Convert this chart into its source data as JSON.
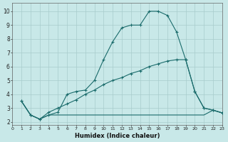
{
  "xlabel": "Humidex (Indice chaleur)",
  "bg_color": "#c8e8e8",
  "grid_color": "#a8cccc",
  "line_color": "#1a6b6b",
  "xlim": [
    0,
    23
  ],
  "ylim": [
    1.8,
    10.6
  ],
  "xticks": [
    0,
    1,
    2,
    3,
    4,
    5,
    6,
    7,
    8,
    9,
    10,
    11,
    12,
    13,
    14,
    15,
    16,
    17,
    18,
    19,
    20,
    21,
    22,
    23
  ],
  "yticks": [
    2,
    3,
    4,
    5,
    6,
    7,
    8,
    9,
    10
  ],
  "line1_x": [
    1,
    2,
    3,
    4,
    5,
    6,
    7,
    8,
    9,
    10,
    11,
    12,
    13,
    14,
    15,
    16,
    17,
    18,
    19,
    20,
    21,
    22,
    23
  ],
  "line1_y": [
    3.5,
    2.5,
    2.2,
    2.5,
    2.7,
    4.0,
    4.2,
    4.3,
    5.0,
    6.5,
    7.8,
    8.8,
    9.0,
    9.0,
    10.0,
    10.0,
    9.7,
    8.5,
    6.5,
    4.2,
    3.0,
    2.85,
    2.65
  ],
  "line2_x": [
    1,
    2,
    3,
    4,
    5,
    6,
    7,
    8,
    9,
    10,
    11,
    12,
    13,
    14,
    15,
    16,
    17,
    18,
    19,
    20,
    21,
    22,
    23
  ],
  "line2_y": [
    3.5,
    2.5,
    2.2,
    2.7,
    3.0,
    3.3,
    3.6,
    4.0,
    4.3,
    4.7,
    5.0,
    5.2,
    5.5,
    5.7,
    6.0,
    6.2,
    6.4,
    6.5,
    6.5,
    4.2,
    3.0,
    2.85,
    2.65
  ],
  "line3_x": [
    1,
    2,
    3,
    4,
    5,
    6,
    7,
    8,
    9,
    10,
    11,
    12,
    13,
    14,
    15,
    16,
    17,
    18,
    19,
    20,
    21,
    22,
    23
  ],
  "line3_y": [
    3.5,
    2.5,
    2.2,
    2.5,
    2.5,
    2.5,
    2.5,
    2.5,
    2.5,
    2.5,
    2.5,
    2.5,
    2.5,
    2.5,
    2.5,
    2.5,
    2.5,
    2.5,
    2.5,
    2.5,
    2.5,
    2.85,
    2.65
  ]
}
